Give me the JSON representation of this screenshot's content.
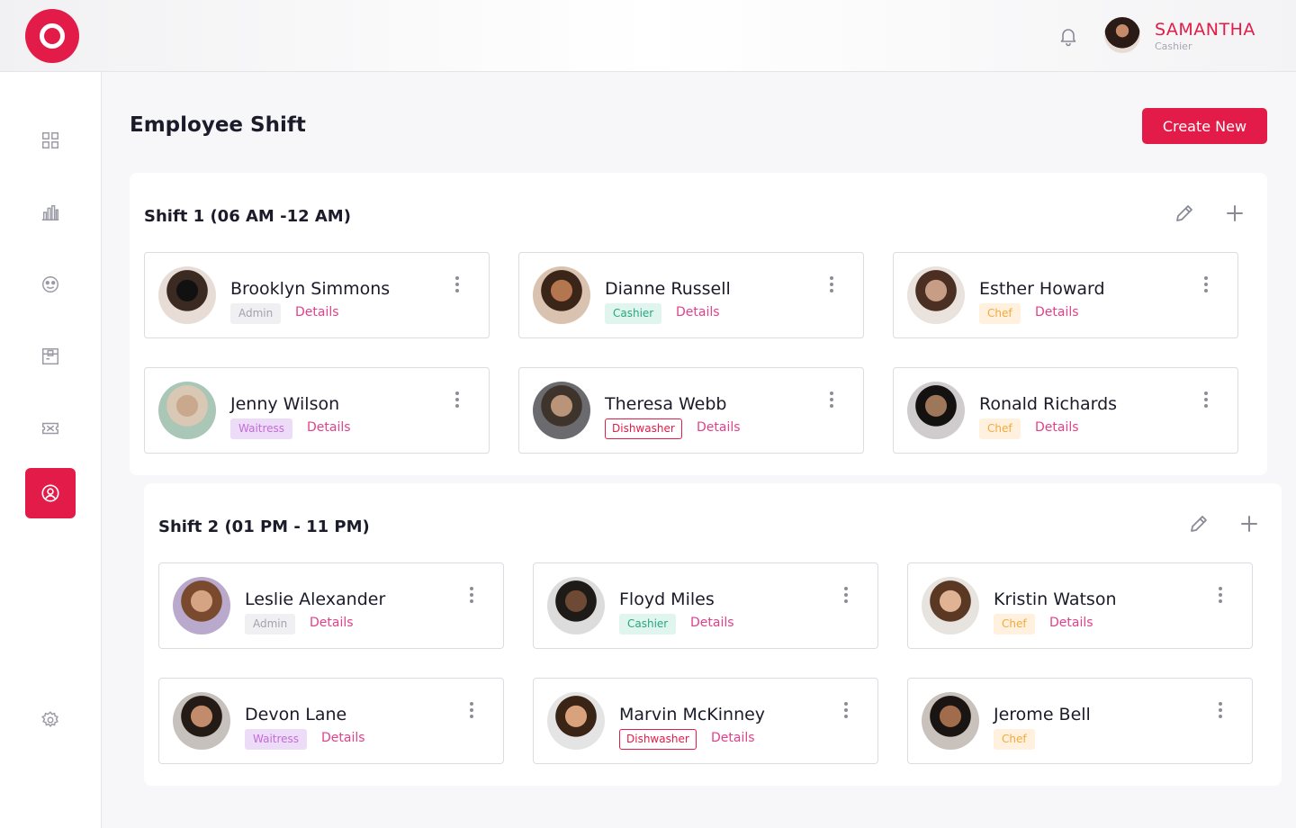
{
  "colors": {
    "accent": "#e31b48",
    "details_link": "#e0418a"
  },
  "header": {
    "user": {
      "name": "SAMANTHA",
      "role": "Cashier"
    },
    "icons": [
      "logo-icon",
      "bell-icon"
    ]
  },
  "sidebar": {
    "items": [
      {
        "icon": "dashboard-grid-icon",
        "active": false
      },
      {
        "icon": "bar-chart-icon",
        "active": false
      },
      {
        "icon": "smiley-icon",
        "active": false
      },
      {
        "icon": "inventory-box-icon",
        "active": false
      },
      {
        "icon": "ticket-icon",
        "active": false
      },
      {
        "icon": "employee-user-icon",
        "active": true
      },
      {
        "icon": "settings-gear-icon",
        "active": false
      }
    ]
  },
  "main": {
    "title": "Employee Shift",
    "create_label": "Create New",
    "details_label": "Details",
    "shifts": [
      {
        "title": "Shift 1 (06 AM -12 AM)",
        "employees": [
          {
            "name": "Brooklyn Simmons",
            "role": "Admin",
            "role_class": "admin",
            "has_details": true
          },
          {
            "name": "Dianne Russell",
            "role": "Cashier",
            "role_class": "cashier",
            "has_details": true
          },
          {
            "name": "Esther Howard",
            "role": "Chef",
            "role_class": "chef",
            "has_details": true
          },
          {
            "name": "Jenny Wilson",
            "role": "Waitress",
            "role_class": "waitress",
            "has_details": true
          },
          {
            "name": "Theresa Webb",
            "role": "Dishwasher",
            "role_class": "dishwasher",
            "has_details": true
          },
          {
            "name": "Ronald Richards",
            "role": "Chef",
            "role_class": "chef",
            "has_details": true
          }
        ]
      },
      {
        "title": "Shift 2 (01 PM - 11 PM)",
        "employees": [
          {
            "name": "Leslie Alexander",
            "role": "Admin",
            "role_class": "admin",
            "has_details": true
          },
          {
            "name": "Floyd Miles",
            "role": "Cashier",
            "role_class": "cashier",
            "has_details": true
          },
          {
            "name": "Kristin Watson",
            "role": "Chef",
            "role_class": "chef",
            "has_details": true
          },
          {
            "name": "Devon Lane",
            "role": "Waitress",
            "role_class": "waitress",
            "has_details": true
          },
          {
            "name": "Marvin McKinney",
            "role": "Dishwasher",
            "role_class": "dishwasher",
            "has_details": true
          },
          {
            "name": "Jerome Bell",
            "role": "Chef",
            "role_class": "chef",
            "has_details": false
          }
        ]
      }
    ]
  }
}
